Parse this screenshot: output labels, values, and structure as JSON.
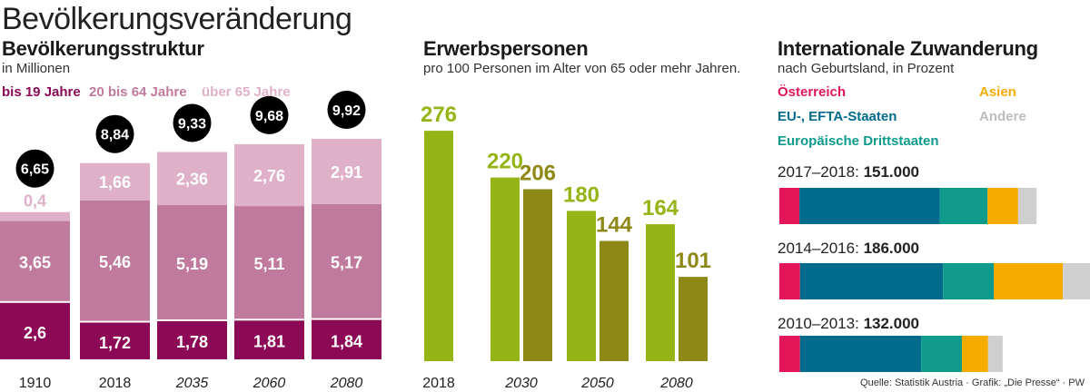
{
  "title": "Bevölkerungsveränderung",
  "source": "Quelle: Statistik Austria · Grafik: „Die Presse“ · PW",
  "colors": {
    "young": "#8c0a55",
    "mid": "#c07a9d",
    "old": "#dfb1c9",
    "green1": "#95b516",
    "green2": "#8e8816",
    "austria": "#e31659",
    "eu": "#006b8c",
    "third": "#0e9b8c",
    "asia": "#f5ab00",
    "other": "#cfcfcf"
  },
  "population": {
    "title": "Bevölkerungsstruktur",
    "subtitle": "in Millionen",
    "legend": [
      "bis 19 Jahre",
      "20 bis 64 Jahre",
      "über 65 Jahre"
    ]
  },
  "workforce": {
    "title": "Erwerbspersonen",
    "subtitle": "pro 100 Personen im Alter von 65 oder mehr Jahren."
  },
  "migration": {
    "title": "Internationale Zuwanderung",
    "subtitle": "nach Geburtsland, in Prozent",
    "legend": [
      "Österreich",
      "Asien",
      "EU-, EFTA-Staaten",
      "Andere",
      "Europäische Drittstaaten"
    ],
    "periods": [
      {
        "label": "2017–2018:",
        "total": "151.000"
      },
      {
        "label": "2014–2016:",
        "total": "186.000"
      },
      {
        "label": "2010–2013:",
        "total": "132.000"
      }
    ]
  },
  "chart_data": [
    {
      "type": "bar",
      "stacked": true,
      "categories": [
        "1910",
        "2018",
        "2035",
        "2060",
        "2080"
      ],
      "totals": [
        "6,65",
        "8,84",
        "9,33",
        "9,68",
        "9,92"
      ],
      "series": [
        {
          "name": "bis 19 Jahre",
          "values": [
            2.6,
            1.72,
            1.78,
            1.81,
            1.84
          ],
          "labels": [
            "2,6",
            "1,72",
            "1,78",
            "1,81",
            "1,84"
          ]
        },
        {
          "name": "20 bis 64 Jahre",
          "values": [
            3.65,
            5.46,
            5.19,
            5.11,
            5.17
          ],
          "labels": [
            "3,65",
            "5,46",
            "5,19",
            "5,11",
            "5,17"
          ]
        },
        {
          "name": "über 65 Jahre",
          "values": [
            0.4,
            1.66,
            2.36,
            2.76,
            2.91
          ],
          "labels": [
            "0,4",
            "1,66",
            "2,36",
            "2,76",
            "2,91"
          ]
        }
      ]
    },
    {
      "type": "bar",
      "categories": [
        "2018",
        "2030",
        "2050",
        "2080"
      ],
      "series": [
        {
          "values": [
            276,
            220,
            180,
            164
          ]
        },
        {
          "values": [
            null,
            206,
            144,
            101
          ]
        }
      ]
    },
    {
      "type": "bar",
      "stacked": true,
      "horizontal": true,
      "categories": [
        "2017–2018",
        "2014–2016",
        "2010–2013"
      ],
      "series": [
        {
          "name": "Österreich",
          "values": [
            6.5,
            6.7,
            6.7
          ]
        },
        {
          "name": "EU-, EFTA-Staaten",
          "values": [
            45.5,
            46.3,
            39.2
          ]
        },
        {
          "name": "Europäische Drittstaaten",
          "values": [
            15.4,
            16.4,
            13.2
          ]
        },
        {
          "name": "Asien",
          "values": [
            9.9,
            22.4,
            8.5
          ]
        },
        {
          "name": "Andere",
          "values": [
            6.0,
            10.6,
            4.7
          ]
        }
      ]
    }
  ]
}
